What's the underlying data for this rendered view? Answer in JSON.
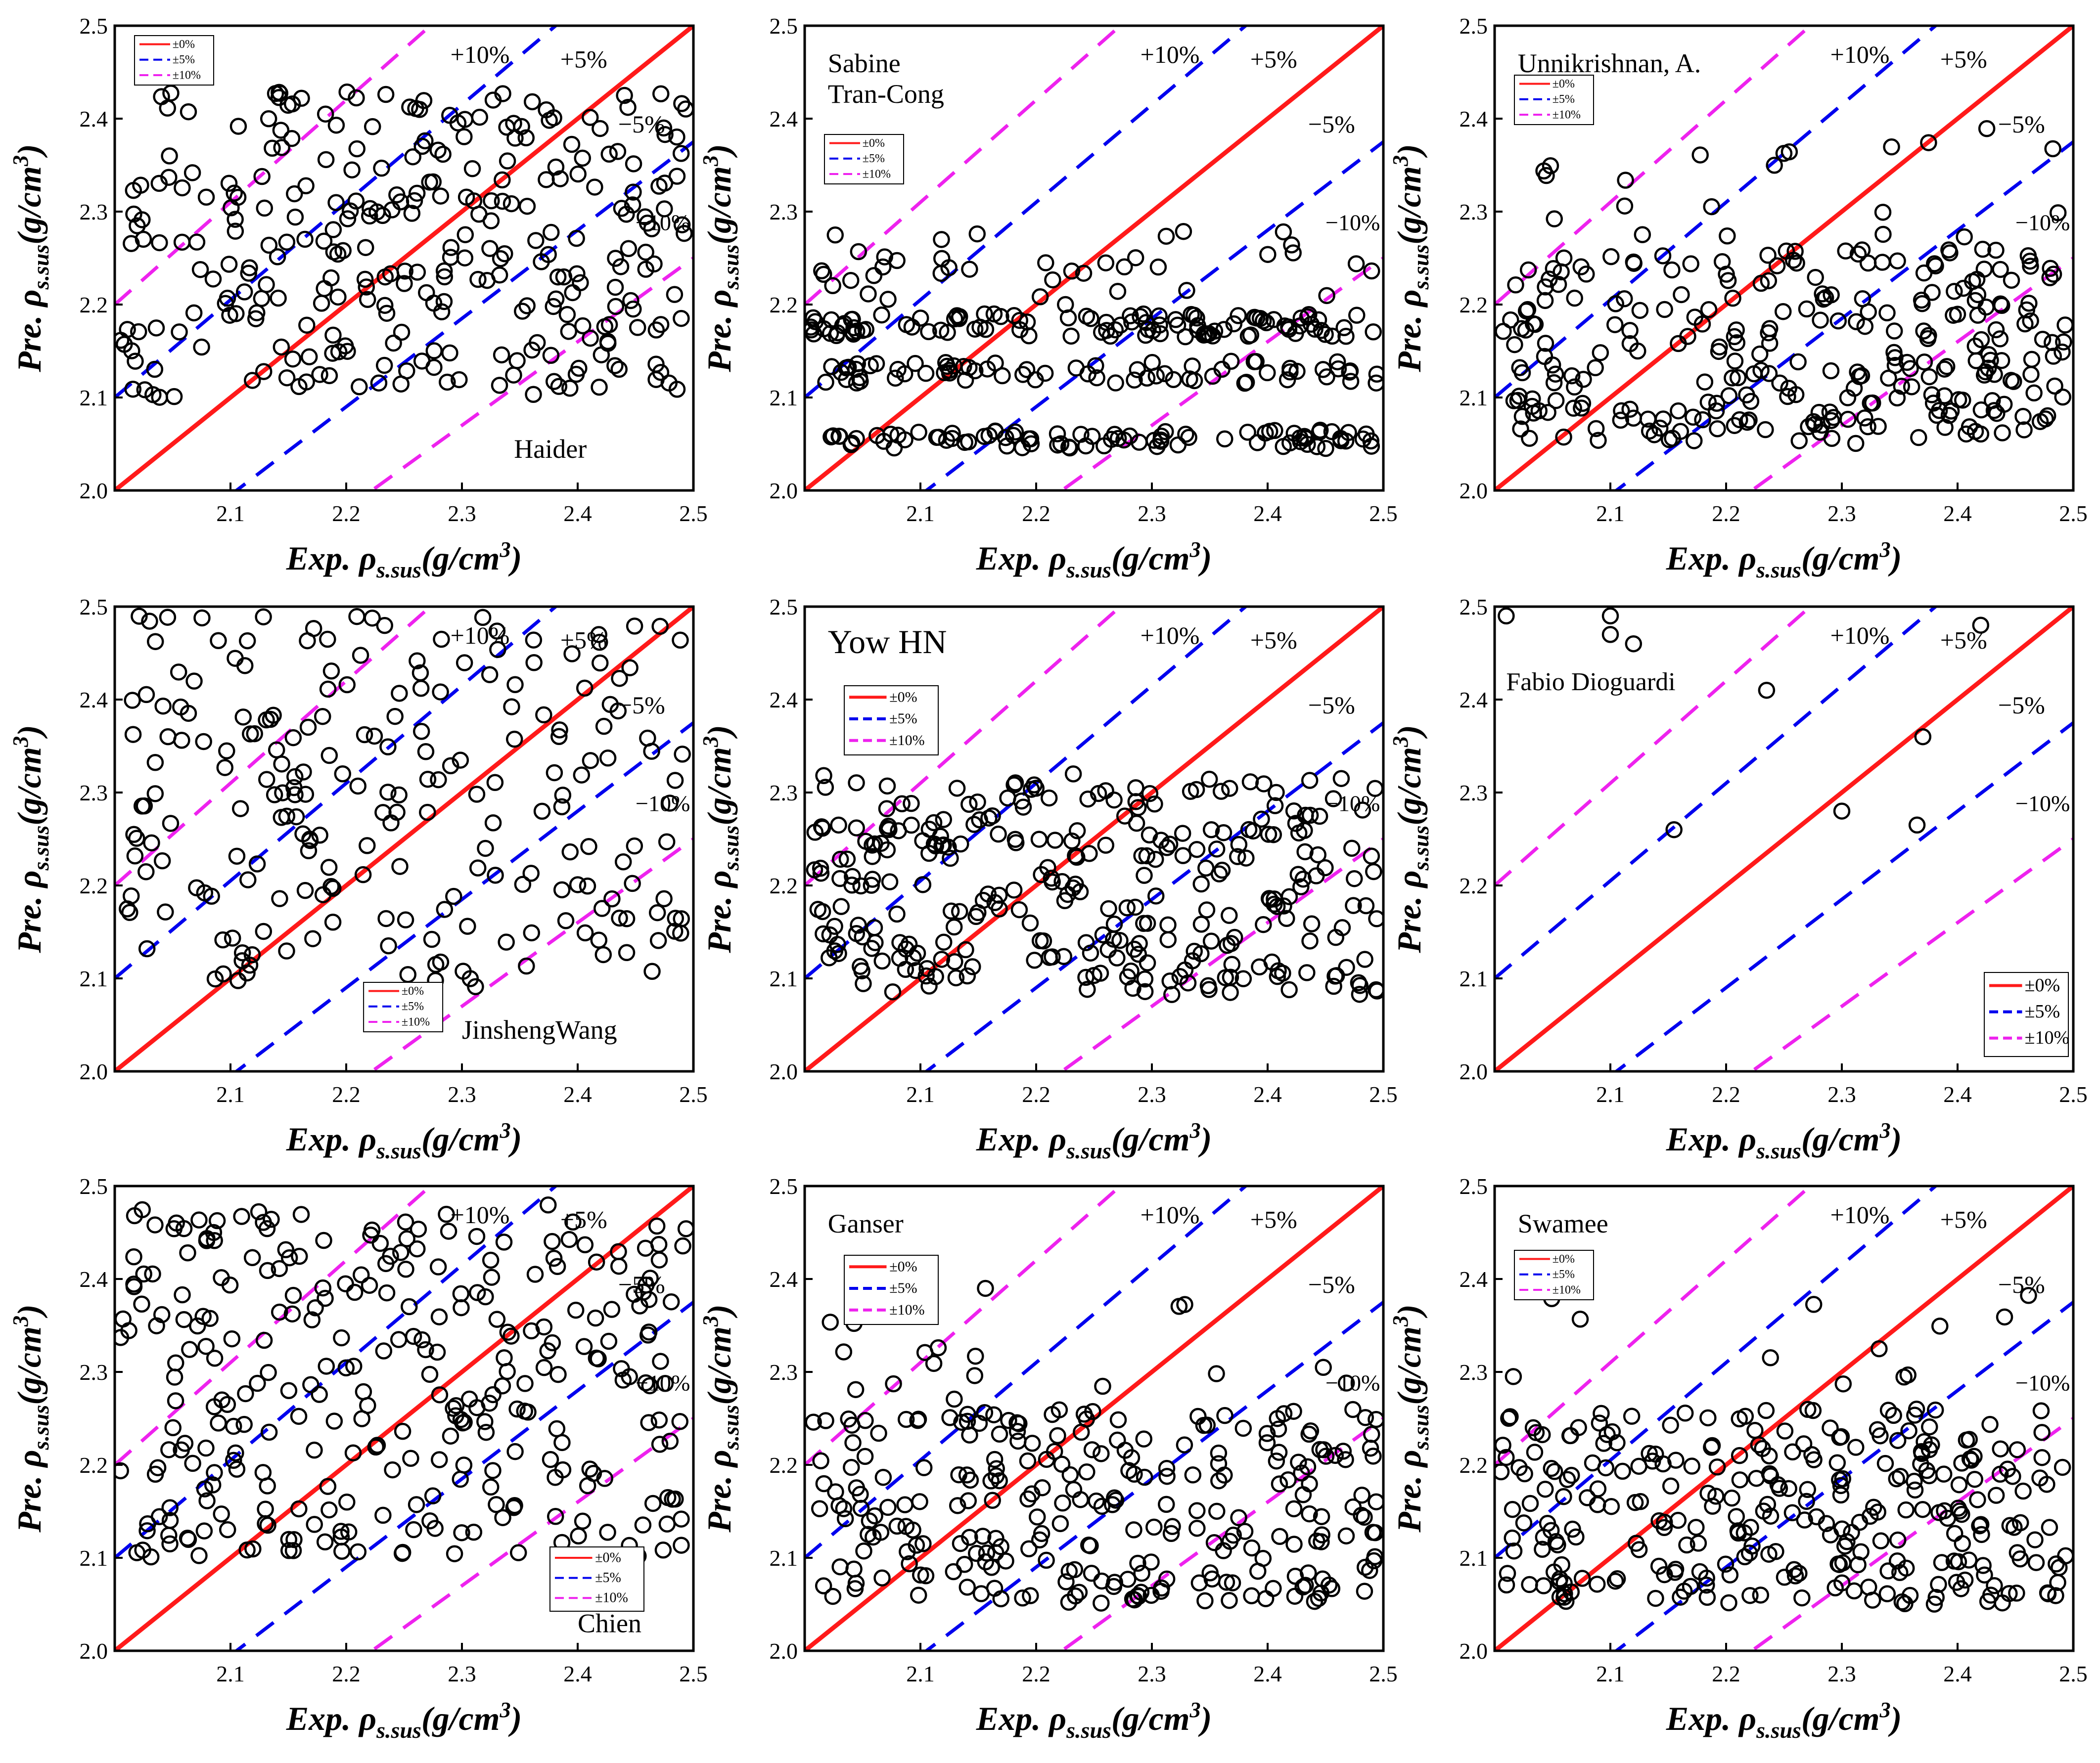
{
  "common": {
    "xlabel_main": "Exp. ρ",
    "xlabel_sub": "s.sus",
    "xlabel_unit": "(g/cm",
    "ylabel_main": "Pre. ρ",
    "ylabel_sub": "s.sus",
    "ylabel_unit": "(g/cm",
    "unit_sup": "3",
    "unit_close": ")",
    "legend_0": "±0%",
    "legend_5": "±5%",
    "legend_10": "±10%",
    "lbl_p10": "+10%",
    "lbl_p5": "+5%",
    "lbl_m5": "−5%",
    "lbl_m10": "−10%",
    "colors": {
      "exact": "#ff1a1a",
      "five": "#0000ee",
      "ten": "#ee22ee",
      "marker": "#000000"
    }
  },
  "chart_data": [
    {
      "type": "scatter",
      "title": "Haider",
      "xlim": [
        2.0,
        2.5
      ],
      "ylim": [
        2.0,
        2.5
      ],
      "xticks": [
        "2.1",
        "2.2",
        "2.3",
        "2.4",
        "2.5"
      ],
      "yticks": [
        "2.0",
        "2.1",
        "2.2",
        "2.3",
        "2.4",
        "2.5"
      ],
      "legend": "top-left-small",
      "distribution": "wide",
      "seed": 11,
      "n": 300
    },
    {
      "type": "scatter",
      "title": "Sabine\nTran-Cong",
      "xlim": [
        2.0,
        2.5
      ],
      "ylim": [
        2.0,
        2.5
      ],
      "xticks": [
        "2.1",
        "2.2",
        "2.3",
        "2.4",
        "2.5"
      ],
      "yticks": [
        "2.0",
        "2.1",
        "2.2",
        "2.3",
        "2.4",
        "2.5"
      ],
      "legend": "top-left-small",
      "distribution": "bands",
      "seed": 23,
      "n": 300
    },
    {
      "type": "scatter",
      "title": "Unnikrishnan, A.",
      "xlim": [
        2.0,
        2.5
      ],
      "ylim": [
        2.0,
        2.5
      ],
      "xticks": [
        "2.1",
        "2.2",
        "2.3",
        "2.4",
        "2.5"
      ],
      "yticks": [
        "2.0",
        "2.1",
        "2.2",
        "2.3",
        "2.4",
        "2.5"
      ],
      "legend": "top-left-small",
      "distribution": "mixed",
      "seed": 37,
      "n": 300
    },
    {
      "type": "scatter",
      "title": "JinshengWang",
      "xlim": [
        2.0,
        2.5
      ],
      "ylim": [
        2.0,
        2.5
      ],
      "xticks": [
        "2.1",
        "2.2",
        "2.3",
        "2.4",
        "2.5"
      ],
      "yticks": [
        "2.0",
        "2.1",
        "2.2",
        "2.3",
        "2.4",
        "2.5"
      ],
      "legend": "mid-bottom-small",
      "distribution": "wide2",
      "seed": 41,
      "n": 220
    },
    {
      "type": "scatter",
      "title": "Yow HN",
      "xlim": [
        2.0,
        2.5
      ],
      "ylim": [
        2.0,
        2.5
      ],
      "xticks": [
        "2.1",
        "2.2",
        "2.3",
        "2.4",
        "2.5"
      ],
      "yticks": [
        "2.0",
        "2.1",
        "2.2",
        "2.3",
        "2.4",
        "2.5"
      ],
      "legend": "top-left-medium",
      "distribution": "middle",
      "seed": 53,
      "n": 300
    },
    {
      "type": "scatter",
      "title": "Fabio Dioguardi",
      "xlim": [
        2.0,
        2.5
      ],
      "ylim": [
        2.0,
        2.5
      ],
      "xticks": [
        "2.1",
        "2.2",
        "2.3",
        "2.4",
        "2.5"
      ],
      "yticks": [
        "2.0",
        "2.1",
        "2.2",
        "2.3",
        "2.4",
        "2.5"
      ],
      "legend": "bottom-right",
      "distribution": "sparse",
      "points": [
        [
          2.01,
          2.49
        ],
        [
          2.1,
          2.49
        ],
        [
          2.1,
          2.47
        ],
        [
          2.12,
          2.46
        ],
        [
          2.42,
          2.48
        ],
        [
          2.235,
          2.41
        ],
        [
          2.37,
          2.36
        ],
        [
          2.155,
          2.26
        ],
        [
          2.3,
          2.28
        ],
        [
          2.365,
          2.265
        ]
      ]
    },
    {
      "type": "scatter",
      "title": "Chien",
      "xlim": [
        2.0,
        2.5
      ],
      "ylim": [
        2.0,
        2.5
      ],
      "xticks": [
        "2.1",
        "2.2",
        "2.3",
        "2.4",
        "2.5"
      ],
      "yticks": [
        "2.0",
        "2.1",
        "2.2",
        "2.3",
        "2.4",
        "2.5"
      ],
      "legend": "bottom-right-small",
      "distribution": "wide3",
      "seed": 67,
      "n": 300
    },
    {
      "type": "scatter",
      "title": "Ganser",
      "xlim": [
        2.0,
        2.5
      ],
      "ylim": [
        2.0,
        2.5
      ],
      "xticks": [
        "2.1",
        "2.2",
        "2.3",
        "2.4",
        "2.5"
      ],
      "yticks": [
        "2.0",
        "2.1",
        "2.2",
        "2.3",
        "2.4",
        "2.5"
      ],
      "legend": "top-left-medium",
      "distribution": "mixed2",
      "seed": 79,
      "n": 280
    },
    {
      "type": "scatter",
      "title": "Swamee",
      "xlim": [
        2.0,
        2.5
      ],
      "ylim": [
        2.0,
        2.5
      ],
      "xticks": [
        "2.1",
        "2.2",
        "2.3",
        "2.4",
        "2.5"
      ],
      "yticks": [
        "2.0",
        "2.1",
        "2.2",
        "2.3",
        "2.4",
        "2.5"
      ],
      "legend": "top-left-small",
      "distribution": "mixed",
      "seed": 83,
      "n": 300
    }
  ]
}
